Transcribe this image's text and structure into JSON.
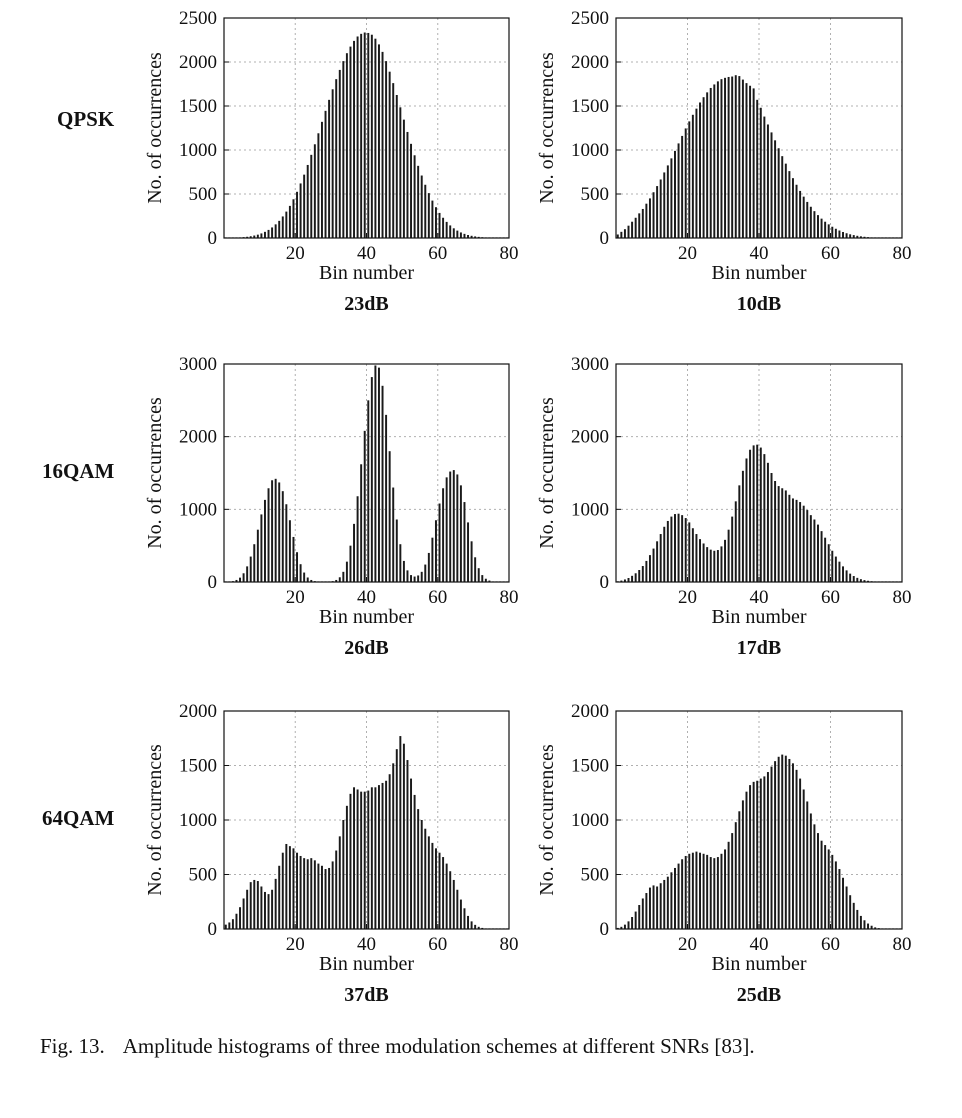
{
  "row_labels": [
    "QPSK",
    "16QAM",
    "64QAM"
  ],
  "caption": {
    "label": "Fig. 13.",
    "text": "Amplitude histograms of three modulation schemes at different SNRs [83]."
  },
  "style": {
    "bar_color": "#1a1a1a",
    "grid_color": "#b0b0b0",
    "axis_color": "#111111"
  },
  "chart_data": [
    {
      "type": "bar",
      "row": "QPSK",
      "snr_label": "23dB",
      "xlabel": "Bin number",
      "ylabel": "No. of occurrences",
      "xlim": [
        0,
        80
      ],
      "ylim": [
        0,
        2500
      ],
      "xticks": [
        20,
        40,
        60,
        80
      ],
      "yticks": [
        0,
        500,
        1000,
        1500,
        2000,
        2500
      ],
      "grid": true,
      "values": [
        1,
        2,
        3,
        5,
        7,
        10,
        14,
        20,
        28,
        38,
        52,
        70,
        92,
        120,
        155,
        195,
        245,
        300,
        365,
        440,
        525,
        620,
        720,
        830,
        945,
        1065,
        1190,
        1320,
        1445,
        1570,
        1690,
        1805,
        1910,
        2010,
        2100,
        2175,
        2240,
        2290,
        2320,
        2335,
        2330,
        2310,
        2265,
        2200,
        2115,
        2010,
        1890,
        1760,
        1625,
        1485,
        1345,
        1205,
        1070,
        940,
        820,
        710,
        605,
        510,
        425,
        350,
        285,
        230,
        183,
        143,
        110,
        84,
        63,
        47,
        34,
        25,
        18,
        13,
        9,
        6,
        4,
        3,
        2,
        1,
        1,
        0
      ]
    },
    {
      "type": "bar",
      "row": "QPSK",
      "snr_label": "10dB",
      "xlabel": "Bin number",
      "ylabel": "No. of occurrences",
      "xlim": [
        0,
        80
      ],
      "ylim": [
        0,
        2500
      ],
      "xticks": [
        20,
        40,
        60,
        80
      ],
      "yticks": [
        0,
        500,
        1000,
        1500,
        2000,
        2500
      ],
      "grid": true,
      "values": [
        40,
        70,
        100,
        140,
        185,
        230,
        280,
        330,
        390,
        450,
        520,
        590,
        665,
        745,
        825,
        905,
        990,
        1075,
        1160,
        1245,
        1325,
        1400,
        1470,
        1540,
        1600,
        1655,
        1705,
        1745,
        1780,
        1805,
        1820,
        1830,
        1835,
        1850,
        1840,
        1800,
        1760,
        1730,
        1700,
        1570,
        1480,
        1380,
        1290,
        1200,
        1110,
        1020,
        930,
        845,
        760,
        680,
        605,
        535,
        470,
        410,
        355,
        305,
        260,
        220,
        185,
        155,
        128,
        105,
        85,
        68,
        54,
        42,
        33,
        25,
        19,
        14,
        10,
        7,
        5,
        4,
        3,
        2,
        1,
        1,
        0,
        0
      ]
    },
    {
      "type": "bar",
      "row": "16QAM",
      "snr_label": "26dB",
      "xlabel": "Bin number",
      "ylabel": "No. of occurrences",
      "xlim": [
        0,
        80
      ],
      "ylim": [
        0,
        3000
      ],
      "xticks": [
        20,
        40,
        60,
        80
      ],
      "yticks": [
        0,
        1000,
        2000,
        3000
      ],
      "grid": true,
      "values": [
        2,
        5,
        12,
        28,
        60,
        120,
        215,
        350,
        520,
        720,
        930,
        1130,
        1290,
        1400,
        1420,
        1370,
        1250,
        1070,
        850,
        620,
        410,
        245,
        130,
        62,
        28,
        12,
        6,
        4,
        4,
        6,
        12,
        28,
        65,
        140,
        280,
        500,
        800,
        1180,
        1620,
        2080,
        2500,
        2820,
        2980,
        2950,
        2700,
        2300,
        1800,
        1300,
        860,
        520,
        290,
        160,
        95,
        75,
        90,
        140,
        240,
        400,
        610,
        850,
        1080,
        1290,
        1440,
        1520,
        1540,
        1480,
        1330,
        1100,
        820,
        560,
        340,
        190,
        95,
        45,
        20,
        8,
        3,
        1,
        0,
        0
      ]
    },
    {
      "type": "bar",
      "row": "16QAM",
      "snr_label": "17dB",
      "xlabel": "Bin number",
      "ylabel": "No. of occurrences",
      "xlim": [
        0,
        80
      ],
      "ylim": [
        0,
        3000
      ],
      "xticks": [
        20,
        40,
        60,
        80
      ],
      "yticks": [
        0,
        1000,
        2000,
        3000
      ],
      "grid": true,
      "values": [
        10,
        20,
        35,
        55,
        85,
        120,
        165,
        220,
        290,
        370,
        460,
        560,
        660,
        760,
        840,
        900,
        935,
        940,
        920,
        880,
        820,
        740,
        660,
        590,
        530,
        480,
        445,
        430,
        440,
        490,
        580,
        720,
        900,
        1110,
        1330,
        1530,
        1700,
        1820,
        1880,
        1890,
        1850,
        1760,
        1640,
        1500,
        1390,
        1320,
        1290,
        1260,
        1200,
        1150,
        1130,
        1100,
        1050,
        990,
        920,
        860,
        790,
        700,
        610,
        520,
        430,
        350,
        280,
        215,
        160,
        115,
        82,
        57,
        39,
        26,
        17,
        11,
        7,
        4,
        3,
        2,
        1,
        1,
        0,
        0
      ]
    },
    {
      "type": "bar",
      "row": "64QAM",
      "snr_label": "37dB",
      "xlabel": "Bin number",
      "ylabel": "No. of occurrences",
      "xlim": [
        0,
        80
      ],
      "ylim": [
        0,
        2000
      ],
      "xticks": [
        20,
        40,
        60,
        80
      ],
      "yticks": [
        0,
        500,
        1000,
        1500,
        2000
      ],
      "grid": true,
      "values": [
        40,
        60,
        90,
        140,
        200,
        280,
        360,
        430,
        450,
        440,
        390,
        340,
        320,
        360,
        460,
        580,
        700,
        780,
        760,
        740,
        700,
        670,
        650,
        640,
        650,
        630,
        600,
        580,
        550,
        560,
        620,
        720,
        850,
        1000,
        1130,
        1240,
        1300,
        1280,
        1260,
        1260,
        1270,
        1300,
        1300,
        1320,
        1340,
        1360,
        1420,
        1520,
        1650,
        1770,
        1700,
        1550,
        1380,
        1230,
        1100,
        1000,
        920,
        850,
        790,
        740,
        700,
        660,
        600,
        530,
        450,
        360,
        270,
        190,
        120,
        70,
        38,
        20,
        10,
        5,
        2,
        1,
        0,
        0,
        0,
        0
      ]
    },
    {
      "type": "bar",
      "row": "64QAM",
      "snr_label": "25dB",
      "xlabel": "Bin number",
      "ylabel": "No. of occurrences",
      "xlim": [
        0,
        80
      ],
      "ylim": [
        0,
        2000
      ],
      "xticks": [
        20,
        40,
        60,
        80
      ],
      "yticks": [
        0,
        500,
        1000,
        1500,
        2000
      ],
      "grid": true,
      "values": [
        10,
        20,
        40,
        70,
        110,
        160,
        220,
        280,
        330,
        380,
        400,
        390,
        420,
        450,
        480,
        520,
        560,
        600,
        640,
        670,
        690,
        700,
        710,
        700,
        690,
        680,
        660,
        650,
        660,
        690,
        730,
        800,
        880,
        980,
        1080,
        1180,
        1260,
        1320,
        1350,
        1360,
        1380,
        1400,
        1440,
        1490,
        1540,
        1580,
        1600,
        1590,
        1560,
        1520,
        1460,
        1380,
        1280,
        1170,
        1060,
        960,
        880,
        810,
        770,
        730,
        680,
        620,
        550,
        470,
        390,
        310,
        240,
        175,
        120,
        80,
        50,
        30,
        15,
        8,
        4,
        2,
        1,
        0,
        0,
        0
      ]
    }
  ]
}
